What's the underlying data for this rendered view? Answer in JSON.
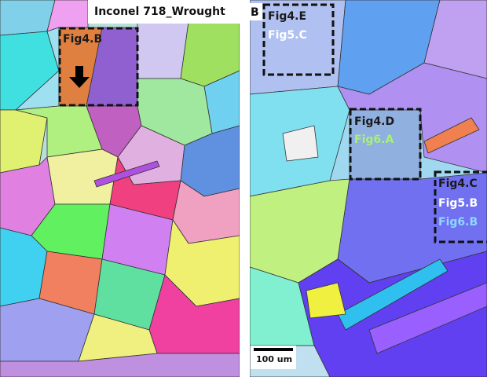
{
  "panel_a": {
    "title": "Inconel 718_Wrought",
    "region": "Fig4.B"
  },
  "panel_b": {
    "label": "B",
    "regions": [
      {
        "labels": [
          "Fig4.E",
          "Fig5.C"
        ]
      },
      {
        "labels": [
          "Fig4.D",
          "Fig6.A"
        ]
      },
      {
        "labels": [
          "Fig4.C",
          "Fig5.B",
          "Fig6.B"
        ]
      }
    ],
    "scale_bar": "100 um"
  }
}
